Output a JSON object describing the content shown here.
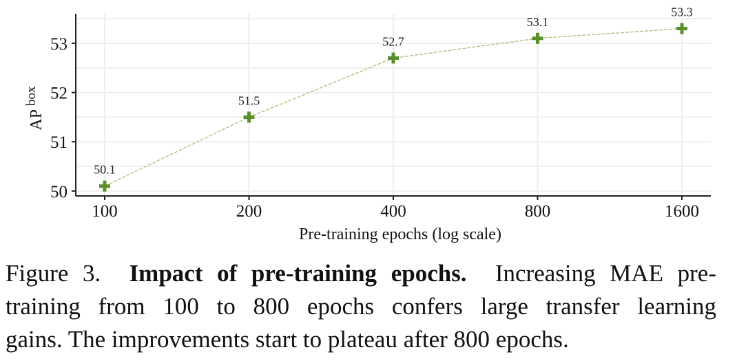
{
  "chart_data": {
    "type": "line",
    "categories": [
      "100",
      "200",
      "400",
      "800",
      "1600"
    ],
    "x": [
      100,
      200,
      400,
      800,
      1600
    ],
    "values": [
      50.1,
      51.5,
      52.7,
      53.1,
      53.3
    ],
    "data_labels": [
      "50.1",
      "51.5",
      "52.7",
      "53.1",
      "53.3"
    ],
    "y_ticks": [
      "50",
      "51",
      "52",
      "53"
    ],
    "y_tick_values": [
      50,
      51,
      52,
      53
    ],
    "xlabel": "Pre-training epochs (log scale)",
    "ylabel_base": "AP",
    "ylabel_sup": "box",
    "x_scale": "log",
    "ylim": [
      49.9,
      53.6
    ],
    "grid": true,
    "marker": "plus",
    "line_color": "#b5c48a",
    "marker_color": "#5a8f2a"
  },
  "caption": {
    "figure_label": "Figure 3.",
    "title": "Impact of pre-training epochs.",
    "line1_rest": "Increasing MAE pre-",
    "line2": "training from 100 to 800 epochs confers large transfer learning",
    "line3": "gains. The improvements start to plateau after 800 epochs."
  }
}
